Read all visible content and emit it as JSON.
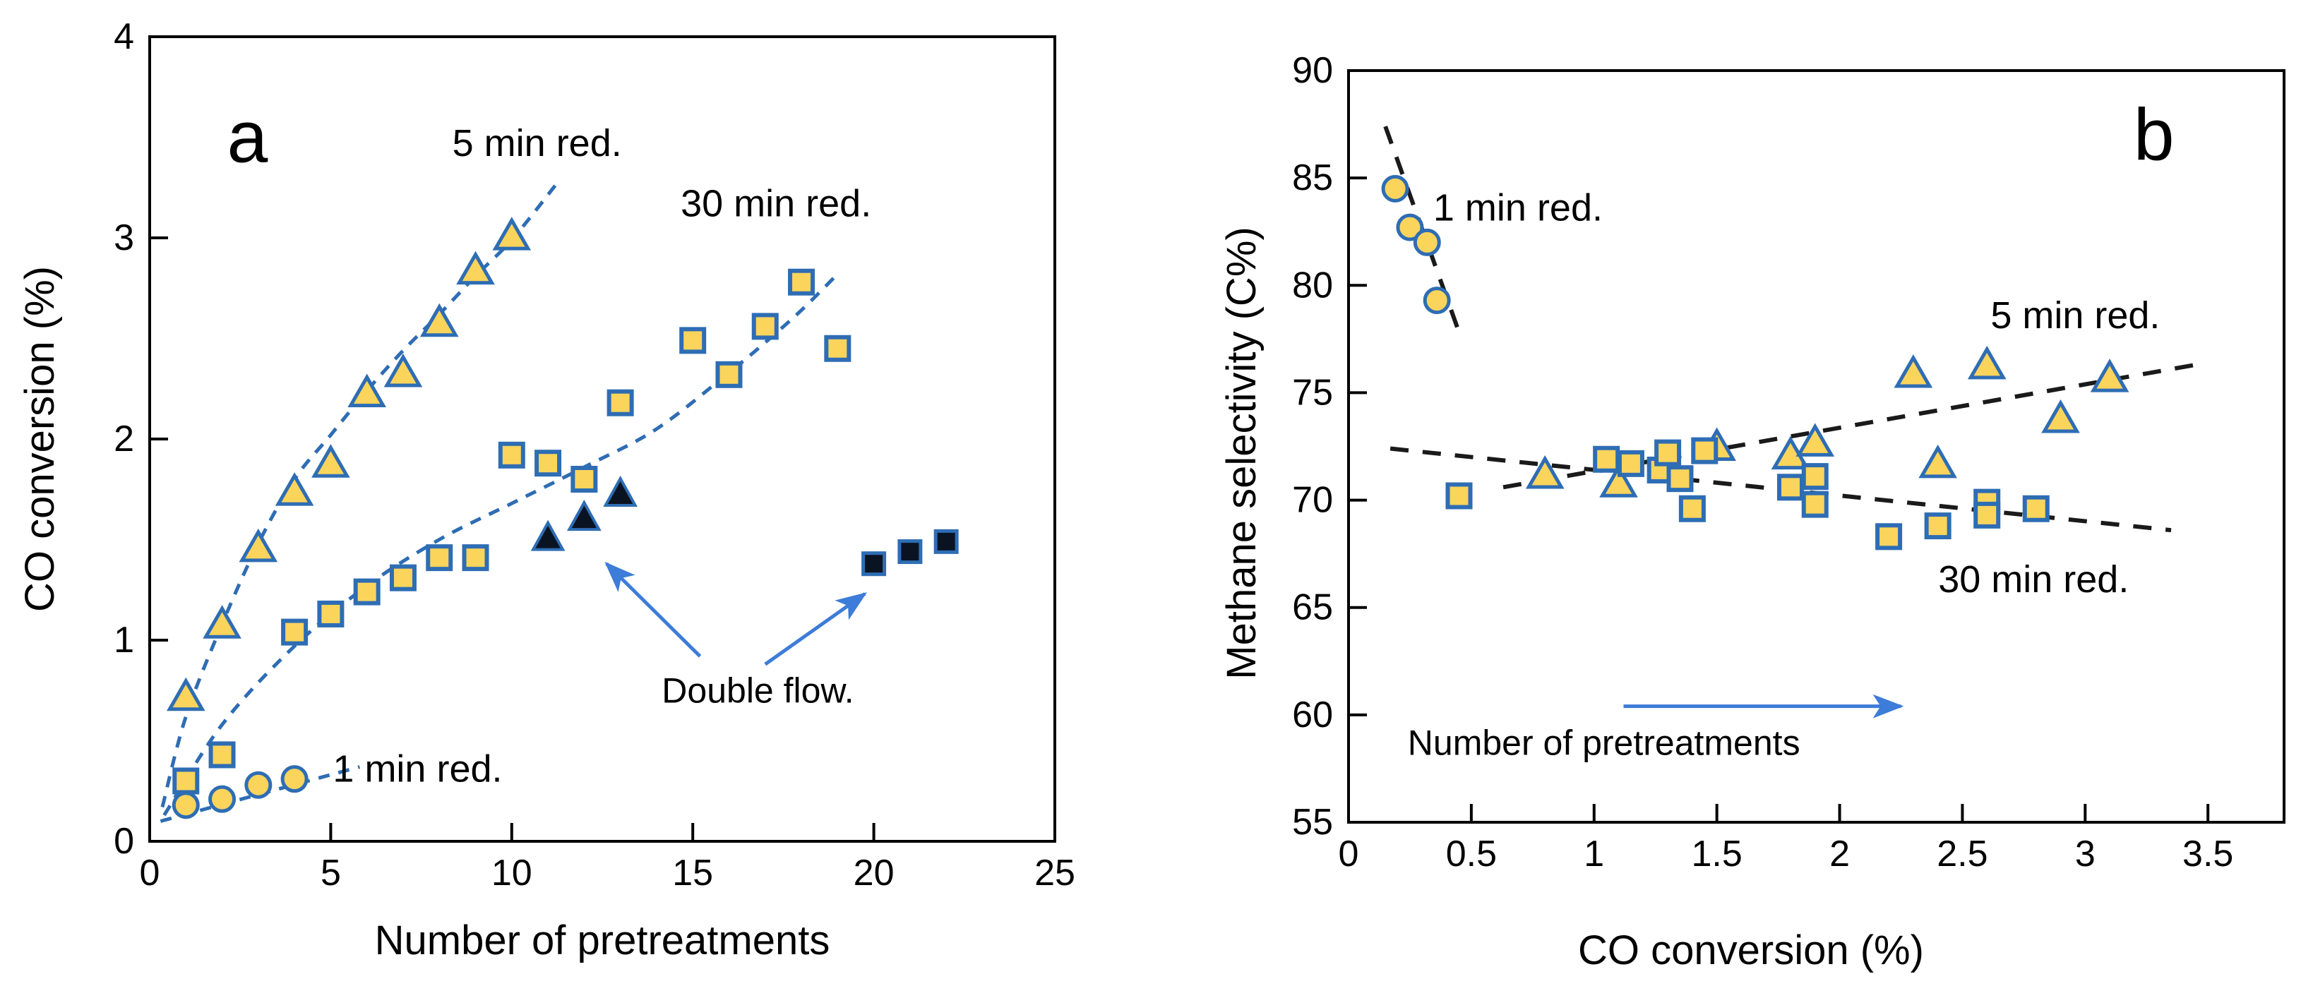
{
  "figure": {
    "background": "#ffffff",
    "colors": {
      "marker_fill": "#fbd45c",
      "marker_edge": "#2e6db4",
      "dark_marker_fill": "#0a1322",
      "trend_panel_a": "#2e6db4",
      "trend_panel_b": "#1a1a1a",
      "arrow": "#3d7cd8",
      "axis": "#000000"
    }
  },
  "chart_data": [
    {
      "id": "a",
      "type": "scatter",
      "panel_label": "a",
      "xlabel": "Number of pretreatments",
      "ylabel": "CO conversion (%)",
      "xlim": [
        0,
        25
      ],
      "ylim": [
        0,
        4
      ],
      "grid": false,
      "xticks": [
        {
          "value": 0,
          "label": "0"
        },
        {
          "value": 5,
          "label": "5"
        },
        {
          "value": 10,
          "label": "10"
        },
        {
          "value": 15,
          "label": "15"
        },
        {
          "value": 20,
          "label": "20"
        },
        {
          "value": 25,
          "label": "25"
        }
      ],
      "yticks": [
        {
          "value": 0,
          "label": "0"
        },
        {
          "value": 1,
          "label": "1"
        },
        {
          "value": 2,
          "label": "2"
        },
        {
          "value": 3,
          "label": "3"
        },
        {
          "value": 4,
          "label": "4"
        }
      ],
      "series": [
        {
          "name": "5 min red.",
          "marker": "triangle",
          "points": [
            [
              1,
              0.72
            ],
            [
              2,
              1.08
            ],
            [
              3,
              1.46
            ],
            [
              4,
              1.74
            ],
            [
              5,
              1.88
            ],
            [
              6,
              2.23
            ],
            [
              7,
              2.33
            ],
            [
              8,
              2.58
            ],
            [
              9,
              2.84
            ],
            [
              10,
              3.01
            ]
          ],
          "trend": [
            [
              0.35,
              0.17
            ],
            [
              1,
              0.62
            ],
            [
              2,
              1.08
            ],
            [
              3,
              1.48
            ],
            [
              4,
              1.8
            ],
            [
              5,
              2.02
            ],
            [
              6,
              2.24
            ],
            [
              7,
              2.44
            ],
            [
              8,
              2.62
            ],
            [
              9,
              2.81
            ],
            [
              10,
              2.99
            ],
            [
              11.2,
              3.26
            ]
          ]
        },
        {
          "name": "30 min red.",
          "marker": "square",
          "points": [
            [
              1,
              0.3
            ],
            [
              2,
              0.43
            ],
            [
              4,
              1.04
            ],
            [
              5,
              1.13
            ],
            [
              6,
              1.24
            ],
            [
              7,
              1.31
            ],
            [
              8,
              1.41
            ],
            [
              9,
              1.41
            ],
            [
              10,
              1.92
            ],
            [
              11,
              1.88
            ],
            [
              12,
              1.8
            ],
            [
              13,
              2.18
            ],
            [
              15,
              2.49
            ],
            [
              16,
              2.32
            ],
            [
              17,
              2.56
            ],
            [
              18,
              2.78
            ],
            [
              19,
              2.45
            ]
          ],
          "trend": [
            [
              0.4,
              0.13
            ],
            [
              2,
              0.58
            ],
            [
              4,
              0.97
            ],
            [
              6,
              1.27
            ],
            [
              8,
              1.5
            ],
            [
              10,
              1.68
            ],
            [
              12,
              1.86
            ],
            [
              14,
              2.05
            ],
            [
              16,
              2.33
            ],
            [
              17,
              2.48
            ],
            [
              18,
              2.64
            ],
            [
              19,
              2.82
            ]
          ]
        },
        {
          "name": "1 min red.",
          "marker": "circle",
          "points": [
            [
              1,
              0.18
            ],
            [
              2,
              0.21
            ],
            [
              3,
              0.28
            ],
            [
              4,
              0.31
            ]
          ],
          "trend": [
            [
              0.3,
              0.1
            ],
            [
              5.8,
              0.37
            ]
          ]
        },
        {
          "name": "Double flow (5 min)",
          "marker": "triangle-solid",
          "points": [
            [
              11,
              1.51
            ],
            [
              12,
              1.61
            ],
            [
              13,
              1.73
            ]
          ]
        },
        {
          "name": "Double flow (30 min)",
          "marker": "square-solid",
          "points": [
            [
              20,
              1.38
            ],
            [
              21,
              1.44
            ],
            [
              22,
              1.49
            ]
          ]
        }
      ],
      "annotations": [
        {
          "kind": "panel-letter",
          "text": "a",
          "x": 2.7,
          "y": 3.5
        },
        {
          "kind": "series-label",
          "text": "5 min red.",
          "x": 10.7,
          "y": 3.47
        },
        {
          "kind": "series-label",
          "text": "30 min red.",
          "x": 17.3,
          "y": 3.17
        },
        {
          "kind": "series-label",
          "text": "1 min red.",
          "x": 7.4,
          "y": 0.36
        },
        {
          "kind": "note",
          "text": "Double flow.",
          "x": 16.8,
          "y": 0.75
        }
      ],
      "arrows": [
        {
          "x1": 15.2,
          "y1": 0.92,
          "x2": 12.62,
          "y2": 1.38
        },
        {
          "x1": 17.0,
          "y1": 0.88,
          "x2": 19.75,
          "y2": 1.23
        }
      ]
    },
    {
      "id": "b",
      "type": "scatter",
      "panel_label": "b",
      "xlabel": "CO conversion (%)",
      "ylabel": "Methane selectivity (C%)",
      "xlim": [
        0,
        3.81
      ],
      "ylim": [
        55,
        90
      ],
      "grid": false,
      "xticks": [
        {
          "value": 0,
          "label": "0"
        },
        {
          "value": 0.5,
          "label": "0.5"
        },
        {
          "value": 1,
          "label": "1"
        },
        {
          "value": 1.5,
          "label": "1.5"
        },
        {
          "value": 2,
          "label": "2"
        },
        {
          "value": 2.5,
          "label": "2.5"
        },
        {
          "value": 3,
          "label": "3"
        },
        {
          "value": 3.5,
          "label": "3.5"
        }
      ],
      "yticks": [
        {
          "value": 55,
          "label": "55"
        },
        {
          "value": 60,
          "label": "60"
        },
        {
          "value": 65,
          "label": "65"
        },
        {
          "value": 70,
          "label": "70"
        },
        {
          "value": 75,
          "label": "75"
        },
        {
          "value": 80,
          "label": "80"
        },
        {
          "value": 85,
          "label": "85"
        },
        {
          "value": 90,
          "label": "90"
        }
      ],
      "series": [
        {
          "name": "1 min red.",
          "marker": "circle",
          "points": [
            [
              0.19,
              84.5
            ],
            [
              0.25,
              82.7
            ],
            [
              0.32,
              82.0
            ],
            [
              0.36,
              79.3
            ]
          ],
          "trend": [
            [
              0.15,
              87.4
            ],
            [
              0.46,
              77.5
            ]
          ]
        },
        {
          "name": "5 min red.",
          "marker": "triangle",
          "points": [
            [
              0.8,
              71.2
            ],
            [
              1.1,
              70.8
            ],
            [
              1.5,
              72.5
            ],
            [
              1.8,
              72.1
            ],
            [
              1.9,
              72.7
            ],
            [
              2.3,
              75.9
            ],
            [
              2.4,
              71.7
            ],
            [
              2.6,
              76.3
            ],
            [
              2.9,
              73.8
            ],
            [
              3.1,
              75.7
            ]
          ],
          "trend": [
            [
              0.63,
              70.6
            ],
            [
              3.45,
              76.3
            ]
          ]
        },
        {
          "name": "30 min red.",
          "marker": "square",
          "points": [
            [
              0.45,
              70.2
            ],
            [
              1.05,
              71.9
            ],
            [
              1.15,
              71.7
            ],
            [
              1.27,
              71.4
            ],
            [
              1.3,
              72.2
            ],
            [
              1.35,
              71.0
            ],
            [
              1.4,
              69.6
            ],
            [
              1.45,
              72.3
            ],
            [
              1.8,
              70.6
            ],
            [
              1.9,
              71.1
            ],
            [
              1.9,
              69.8
            ],
            [
              2.2,
              68.3
            ],
            [
              2.4,
              68.8
            ],
            [
              2.6,
              69.9
            ],
            [
              2.6,
              69.3
            ],
            [
              2.8,
              69.6
            ]
          ],
          "trend": [
            [
              0.17,
              72.4
            ],
            [
              3.35,
              68.6
            ]
          ]
        }
      ],
      "annotations": [
        {
          "kind": "panel-letter",
          "text": "b",
          "x": 3.28,
          "y": 87.0
        },
        {
          "kind": "series-label",
          "text": "1 min red.",
          "x": 0.69,
          "y": 83.6
        },
        {
          "kind": "series-label",
          "text": "5 min red.",
          "x": 2.96,
          "y": 78.6
        },
        {
          "kind": "series-label",
          "text": "30 min red.",
          "x": 2.79,
          "y": 66.3
        },
        {
          "kind": "note",
          "text": "Number of pretreatments",
          "x": 1.04,
          "y": 58.7
        }
      ],
      "arrows": [
        {
          "x1": 1.12,
          "y1": 60.4,
          "x2": 2.25,
          "y2": 60.4
        }
      ]
    }
  ]
}
